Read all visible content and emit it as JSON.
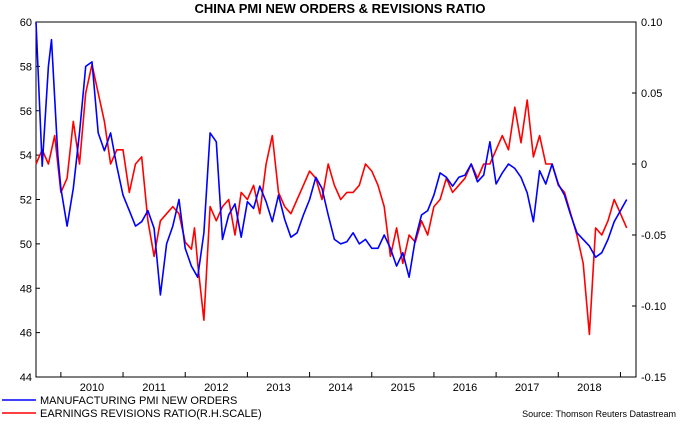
{
  "chart_data": {
    "type": "line",
    "title": "CHINA PMI NEW ORDERS & REVISIONS RATIO",
    "source": "Source: Thomson Reuters Datastream",
    "x_ticks": [
      "2010",
      "2011",
      "2012",
      "2013",
      "2014",
      "2015",
      "2016",
      "2017",
      "2018"
    ],
    "x_range": [
      2009.6,
      2019.25
    ],
    "left_axis": {
      "ylim": [
        44,
        60
      ],
      "ticks": [
        "44",
        "46",
        "48",
        "50",
        "52",
        "54",
        "56",
        "58",
        "60"
      ]
    },
    "right_axis": {
      "ylim": [
        -0.15,
        0.1
      ],
      "ticks": [
        "-0.15",
        "-0.10",
        "-0.05",
        "0",
        "0.05",
        "0.10"
      ]
    },
    "grid": false,
    "legend_position": "bottom-left",
    "series": [
      {
        "name": "MANUFACTURING PMI NEW ORDERS",
        "axis": "left",
        "color": "#0000ff",
        "x": [
          2009.6,
          2009.7,
          2009.8,
          2009.85,
          2009.95,
          2010.0,
          2010.1,
          2010.2,
          2010.3,
          2010.4,
          2010.5,
          2010.6,
          2010.7,
          2010.8,
          2010.9,
          2011.0,
          2011.1,
          2011.2,
          2011.3,
          2011.4,
          2011.5,
          2011.6,
          2011.7,
          2011.8,
          2011.9,
          2012.0,
          2012.1,
          2012.2,
          2012.3,
          2012.4,
          2012.5,
          2012.6,
          2012.7,
          2012.8,
          2012.9,
          2013.0,
          2013.1,
          2013.2,
          2013.3,
          2013.4,
          2013.5,
          2013.6,
          2013.7,
          2013.8,
          2013.9,
          2014.0,
          2014.1,
          2014.2,
          2014.3,
          2014.4,
          2014.5,
          2014.6,
          2014.7,
          2014.8,
          2014.9,
          2015.0,
          2015.1,
          2015.2,
          2015.3,
          2015.4,
          2015.5,
          2015.6,
          2015.7,
          2015.8,
          2015.9,
          2016.0,
          2016.1,
          2016.2,
          2016.3,
          2016.4,
          2016.5,
          2016.6,
          2016.7,
          2016.8,
          2016.9,
          2017.0,
          2017.1,
          2017.2,
          2017.3,
          2017.4,
          2017.5,
          2017.6,
          2017.7,
          2017.8,
          2017.9,
          2018.0,
          2018.1,
          2018.2,
          2018.3,
          2018.4,
          2018.5,
          2018.6,
          2018.7,
          2018.8,
          2018.9,
          2019.0,
          2019.1
        ],
        "values": [
          60,
          53.5,
          58,
          59.2,
          54,
          52.5,
          50.8,
          52.5,
          55,
          58,
          58.2,
          55,
          54.2,
          55,
          53.5,
          52.2,
          51.5,
          50.8,
          51,
          51.5,
          50.7,
          47.7,
          50,
          50.8,
          52,
          49.8,
          49,
          48.5,
          50.5,
          55,
          54.6,
          50.2,
          51.3,
          51.8,
          50.3,
          51.9,
          51.6,
          52.6,
          51.9,
          51,
          52.2,
          51.1,
          50.3,
          50.5,
          51.3,
          52,
          53,
          52.5,
          51.3,
          50.2,
          50,
          50.1,
          50.5,
          50,
          50.2,
          49.8,
          49.8,
          50.4,
          49.8,
          49,
          49.6,
          48.5,
          50.2,
          51.3,
          51.5,
          52.2,
          53.2,
          53,
          52.6,
          53,
          53.1,
          53.6,
          52.8,
          53.1,
          54.6,
          52.7,
          53.2,
          53.6,
          53.4,
          53,
          52.3,
          51,
          53.3,
          52.7,
          53.6,
          52.7,
          52.2,
          51.3,
          50.5,
          50.2,
          49.9,
          49.4,
          49.6,
          50.2,
          51,
          51.5,
          52
        ]
      },
      {
        "name": "EARNINGS REVISIONS RATIO(R.H.SCALE)",
        "axis": "right",
        "color": "#ff0000",
        "x": [
          2009.6,
          2009.7,
          2009.8,
          2009.9,
          2010.0,
          2010.1,
          2010.2,
          2010.3,
          2010.4,
          2010.5,
          2010.6,
          2010.7,
          2010.8,
          2010.9,
          2011.0,
          2011.1,
          2011.2,
          2011.3,
          2011.4,
          2011.5,
          2011.6,
          2011.7,
          2011.8,
          2011.9,
          2012.0,
          2012.1,
          2012.15,
          2012.2,
          2012.3,
          2012.4,
          2012.5,
          2012.6,
          2012.7,
          2012.8,
          2012.9,
          2013.0,
          2013.1,
          2013.2,
          2013.3,
          2013.4,
          2013.5,
          2013.6,
          2013.7,
          2013.8,
          2013.9,
          2014.0,
          2014.1,
          2014.2,
          2014.3,
          2014.4,
          2014.5,
          2014.6,
          2014.7,
          2014.8,
          2014.9,
          2015.0,
          2015.1,
          2015.2,
          2015.3,
          2015.4,
          2015.5,
          2015.6,
          2015.7,
          2015.8,
          2015.9,
          2016.0,
          2016.1,
          2016.2,
          2016.3,
          2016.4,
          2016.5,
          2016.6,
          2016.7,
          2016.8,
          2016.9,
          2017.0,
          2017.1,
          2017.2,
          2017.3,
          2017.4,
          2017.5,
          2017.6,
          2017.7,
          2017.8,
          2017.9,
          2018.0,
          2018.1,
          2018.2,
          2018.3,
          2018.4,
          2018.5,
          2018.6,
          2018.7,
          2018.8,
          2018.9,
          2019.0,
          2019.1
        ],
        "values": [
          0.0,
          0.01,
          0.0,
          0.02,
          -0.02,
          -0.01,
          0.03,
          0.0,
          0.05,
          0.07,
          0.05,
          0.03,
          0.0,
          0.01,
          0.01,
          -0.02,
          0.0,
          0.005,
          -0.04,
          -0.065,
          -0.04,
          -0.035,
          -0.03,
          -0.035,
          -0.055,
          -0.06,
          -0.045,
          -0.07,
          -0.11,
          -0.03,
          -0.04,
          -0.03,
          -0.025,
          -0.05,
          -0.02,
          -0.025,
          -0.015,
          -0.035,
          0.0,
          0.02,
          -0.02,
          -0.03,
          -0.035,
          -0.025,
          -0.015,
          -0.005,
          -0.01,
          -0.025,
          0.0,
          -0.015,
          -0.025,
          -0.02,
          -0.02,
          -0.015,
          0.0,
          -0.005,
          -0.015,
          -0.03,
          -0.065,
          -0.045,
          -0.07,
          -0.05,
          -0.055,
          -0.04,
          -0.05,
          -0.03,
          -0.025,
          -0.01,
          -0.02,
          -0.015,
          -0.01,
          0.0,
          -0.01,
          0.0,
          0.0,
          0.01,
          0.02,
          0.01,
          0.04,
          0.015,
          0.045,
          0.005,
          0.02,
          0.0,
          0.0,
          -0.015,
          -0.02,
          -0.035,
          -0.05,
          -0.07,
          -0.12,
          -0.045,
          -0.05,
          -0.04,
          -0.025,
          -0.035,
          -0.045
        ]
      }
    ]
  }
}
